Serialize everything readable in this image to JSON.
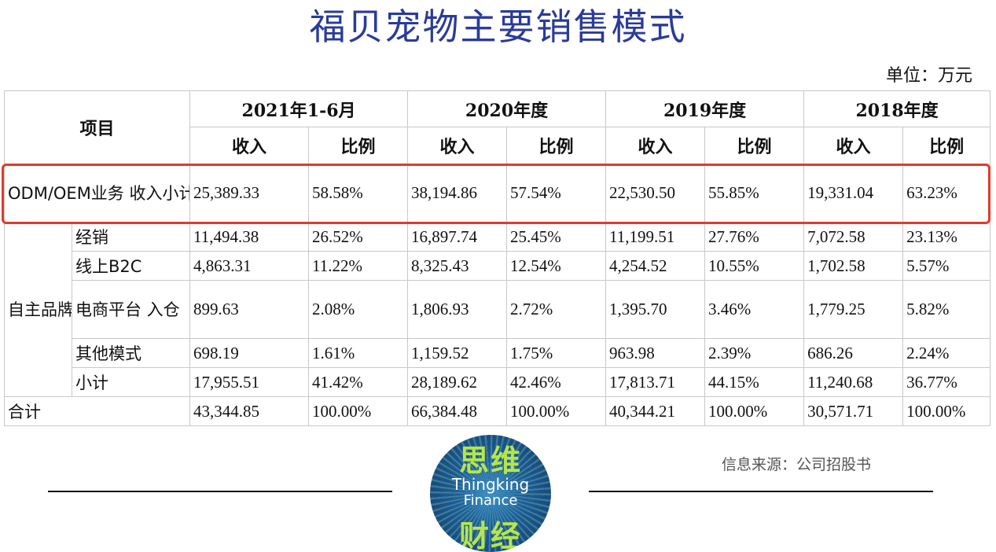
{
  "title": "福贝宠物主要销售模式",
  "unit": "单位：万元",
  "header": {
    "item": "项目",
    "periods": [
      "2021年1-6月",
      "2020年度",
      "2019年度",
      "2018年度"
    ],
    "income": "收入",
    "ratio": "比例"
  },
  "odm_row": {
    "label": "ODM/OEM业务 收入小计",
    "values": [
      "25,389.33",
      "58.58%",
      "38,194.86",
      "57.54%",
      "22,530.50",
      "55.85%",
      "19,331.04",
      "63.23%"
    ]
  },
  "brand": {
    "group_label": "自主品牌业务",
    "rows": [
      {
        "label": "经销",
        "values": [
          "11,494.38",
          "26.52%",
          "16,897.74",
          "25.45%",
          "11,199.51",
          "27.76%",
          "7,072.58",
          "23.13%"
        ]
      },
      {
        "label": "线上B2C",
        "values": [
          "4,863.31",
          "11.22%",
          "8,325.43",
          "12.54%",
          "4,254.52",
          "10.55%",
          "1,702.58",
          "5.57%"
        ]
      },
      {
        "label": "电商平台 入仓",
        "values": [
          "899.63",
          "2.08%",
          "1,806.93",
          "2.72%",
          "1,395.70",
          "3.46%",
          "1,779.25",
          "5.82%"
        ]
      },
      {
        "label": "其他模式",
        "values": [
          "698.19",
          "1.61%",
          "1,159.52",
          "1.75%",
          "963.98",
          "2.39%",
          "686.26",
          "2.24%"
        ]
      },
      {
        "label": "小计",
        "values": [
          "17,955.51",
          "41.42%",
          "28,189.62",
          "42.46%",
          "17,813.71",
          "44.15%",
          "11,240.68",
          "36.77%"
        ]
      }
    ]
  },
  "total_row": {
    "label": "合计",
    "values": [
      "43,344.85",
      "100.00%",
      "66,384.48",
      "100.00%",
      "40,344.21",
      "100.00%",
      "30,571.71",
      "100.00%"
    ]
  },
  "source": "信息来源：公司招股书",
  "logo": {
    "cn_top": "思维",
    "en_line1": "Thingking",
    "en_line2": "Finance",
    "cn_bottom": "财经"
  },
  "colors": {
    "title": "#2a3b9a",
    "highlight": "#e03b2b",
    "logo_green": "#b6e64a",
    "logo_blue": "#1c5f9e"
  }
}
